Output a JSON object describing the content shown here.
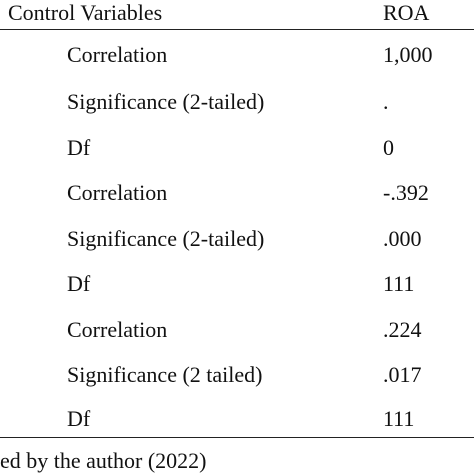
{
  "table": {
    "header": {
      "col1": "Control Variables",
      "col2": "ROA"
    },
    "rows": [
      {
        "label": "Correlation",
        "value": "1,000"
      },
      {
        "label": "Significance (2-tailed)",
        "value": "."
      },
      {
        "label": "Df",
        "value": "0"
      },
      {
        "label": "Correlation",
        "value": "-.392"
      },
      {
        "label": "Significance (2-tailed)",
        "value": ".000"
      },
      {
        "label": "Df",
        "value": "111"
      },
      {
        "label": "Correlation",
        "value": ".224"
      },
      {
        "label": "Significance (2 tailed)",
        "value": ".017"
      },
      {
        "label": "Df",
        "value": "111"
      }
    ]
  },
  "footer": {
    "source": "ed by the author (2022)"
  }
}
